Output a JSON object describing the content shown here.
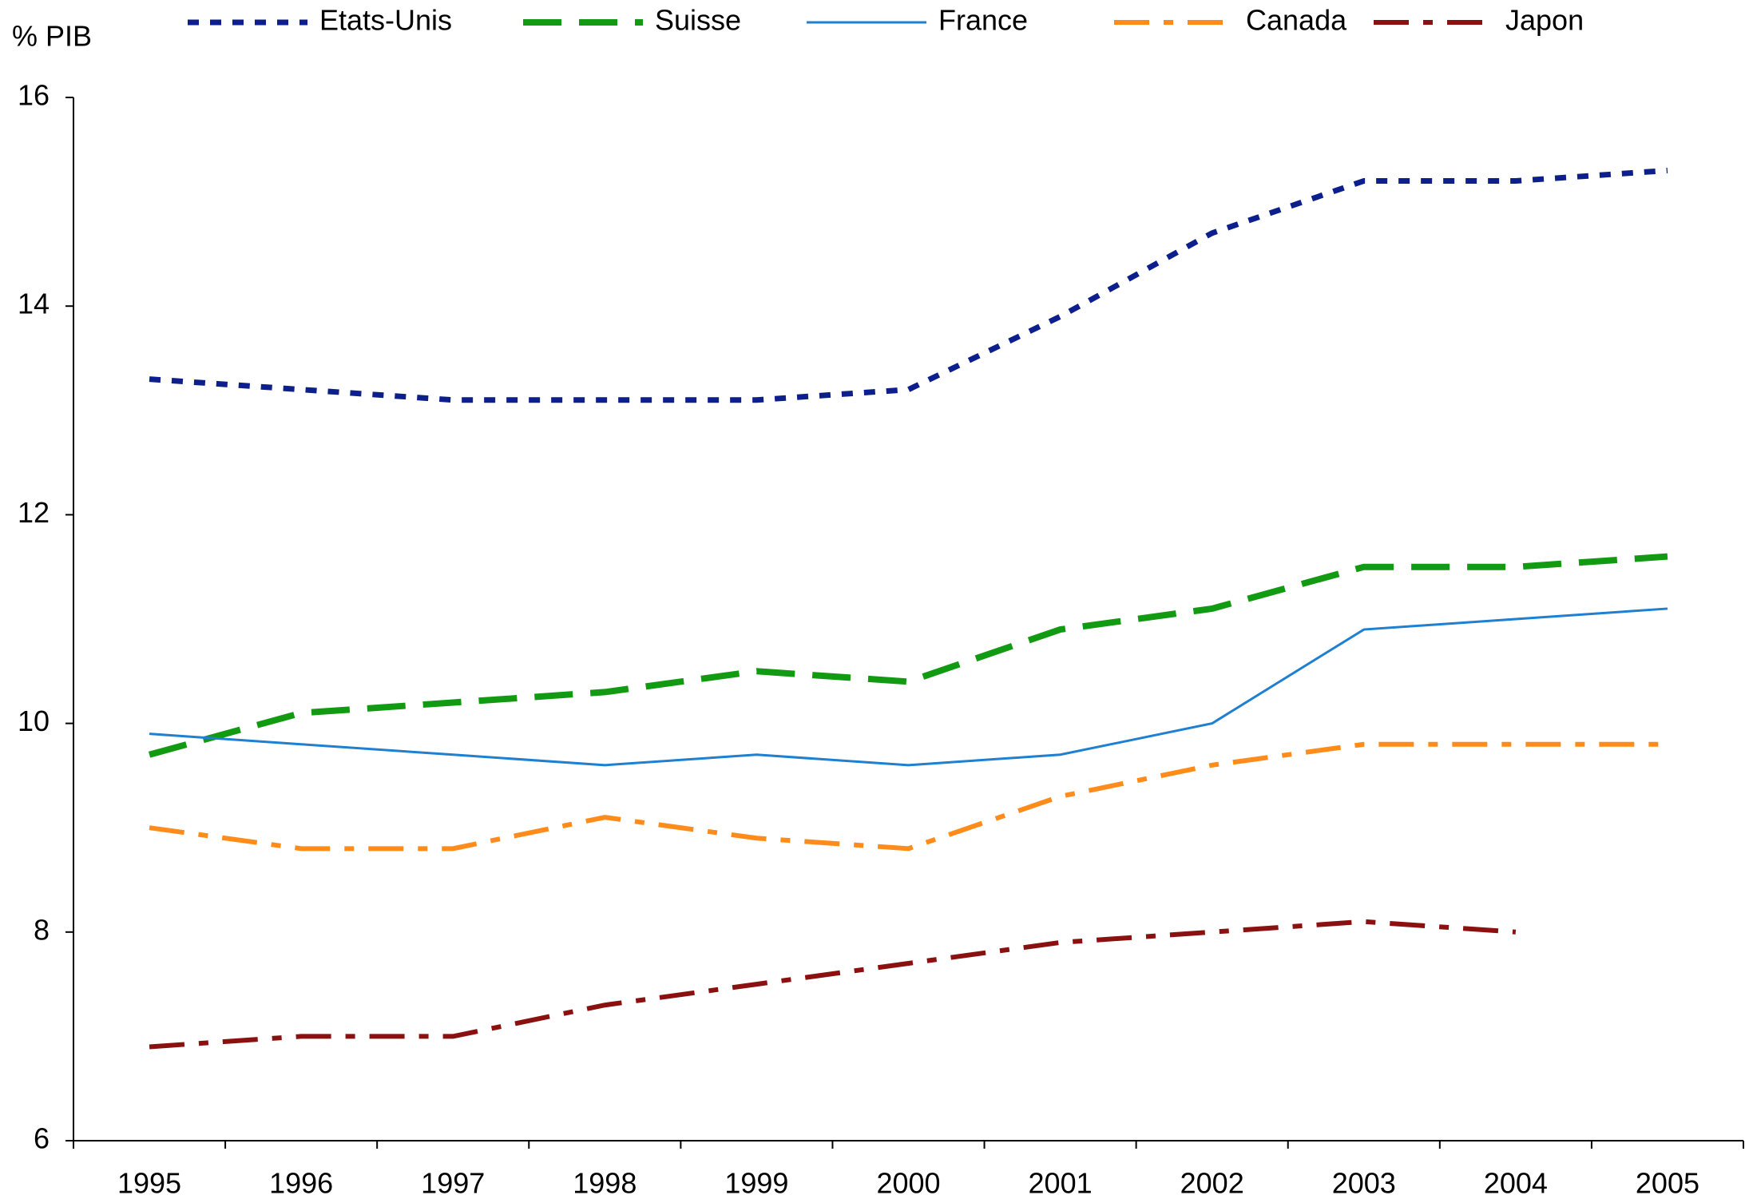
{
  "chart_data": {
    "type": "line",
    "y_label": "% PIB",
    "categories": [
      "1995",
      "1996",
      "1997",
      "1998",
      "1999",
      "2000",
      "2001",
      "2002",
      "2003",
      "2004",
      "2005"
    ],
    "ylim": [
      6,
      16
    ],
    "yticks": [
      6,
      8,
      10,
      12,
      14,
      16
    ],
    "series": [
      {
        "name": "Etats-Unis",
        "color": "#0d1f8c",
        "style": "dotted",
        "values": [
          13.3,
          13.2,
          13.1,
          13.1,
          13.1,
          13.2,
          13.9,
          14.7,
          15.2,
          15.2,
          15.3
        ]
      },
      {
        "name": "Suisse",
        "color": "#139a13",
        "style": "dashed",
        "values": [
          9.7,
          10.1,
          10.2,
          10.3,
          10.5,
          10.4,
          10.9,
          11.1,
          11.5,
          11.5,
          11.6
        ]
      },
      {
        "name": "France",
        "color": "#1f7fd0",
        "style": "solid",
        "values": [
          9.9,
          9.8,
          9.7,
          9.6,
          9.7,
          9.6,
          9.7,
          10.0,
          10.9,
          11.0,
          11.1
        ]
      },
      {
        "name": "Canada",
        "color": "#ff8c1a",
        "style": "dashdot",
        "values": [
          9.0,
          8.8,
          8.8,
          9.1,
          8.9,
          8.8,
          9.3,
          9.6,
          9.8,
          9.8,
          9.8
        ]
      },
      {
        "name": "Japon",
        "color": "#8b1010",
        "style": "dashdot",
        "values": [
          6.9,
          7.0,
          7.0,
          7.3,
          7.5,
          7.7,
          7.9,
          8.0,
          8.1,
          8.0,
          null
        ]
      }
    ]
  }
}
